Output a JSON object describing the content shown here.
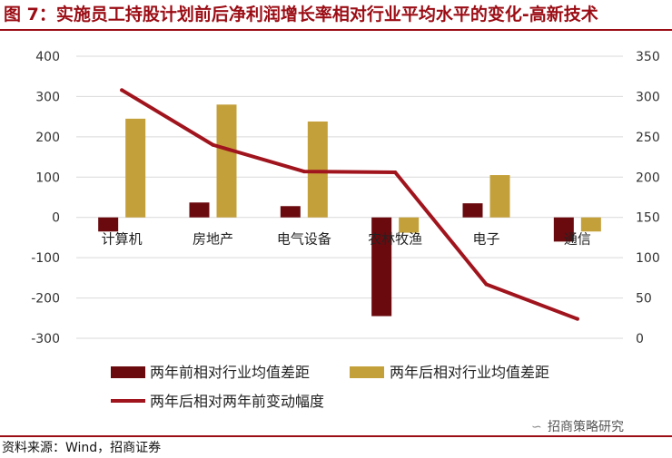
{
  "title": "图 7：实施员工持股计划前后净利润增长率相对行业平均水平的变化-高新技术",
  "source": "资料来源：Wind，招商证券",
  "watermark": "招商策略研究",
  "colors": {
    "before": "#6b0a0e",
    "after": "#c4a03a",
    "line": "#a0141d",
    "accent": "#9b0d15"
  },
  "chart_data": {
    "type": "bar+line",
    "categories": [
      "计算机",
      "房地产",
      "电气设备",
      "农林牧渔",
      "电子",
      "通信"
    ],
    "series": [
      {
        "name": "两年前相对行业均值差距",
        "type": "bar",
        "axis": "left",
        "values": [
          -35,
          37,
          28,
          -245,
          35,
          -60
        ]
      },
      {
        "name": "两年后相对行业均值差距",
        "type": "bar",
        "axis": "left",
        "values": [
          245,
          280,
          238,
          -38,
          105,
          -35
        ]
      },
      {
        "name": "两年后相对两年前变动幅度",
        "type": "line",
        "axis": "right",
        "values": [
          308,
          240,
          207,
          206,
          67,
          24
        ]
      }
    ],
    "ylim_left": [
      -300,
      400
    ],
    "yticks_left": [
      400,
      300,
      200,
      100,
      0,
      -100,
      -200,
      -300
    ],
    "ytick_labels_left": [
      "400",
      "300",
      "200",
      "100",
      "0",
      "-100",
      "-200",
      "-300"
    ],
    "ylim_right": [
      0,
      350
    ],
    "yticks_right": [
      350,
      300,
      250,
      200,
      150,
      100,
      50,
      0
    ],
    "ytick_labels_right": [
      "350",
      "300",
      "250",
      "200",
      "150",
      "100",
      "50",
      "0"
    ]
  }
}
